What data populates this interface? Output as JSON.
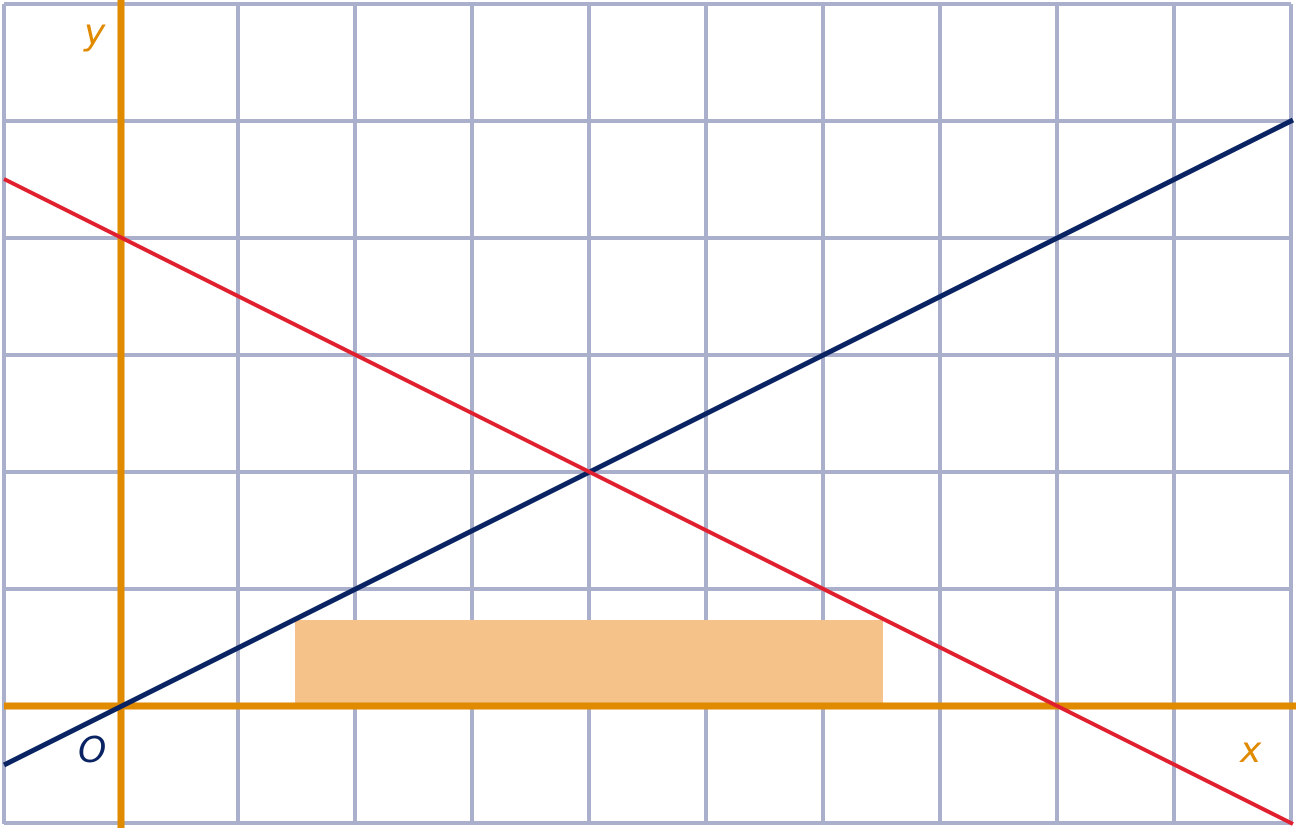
{
  "labels": {
    "y_axis": "y",
    "x_axis": "x",
    "origin": "O"
  }
}
